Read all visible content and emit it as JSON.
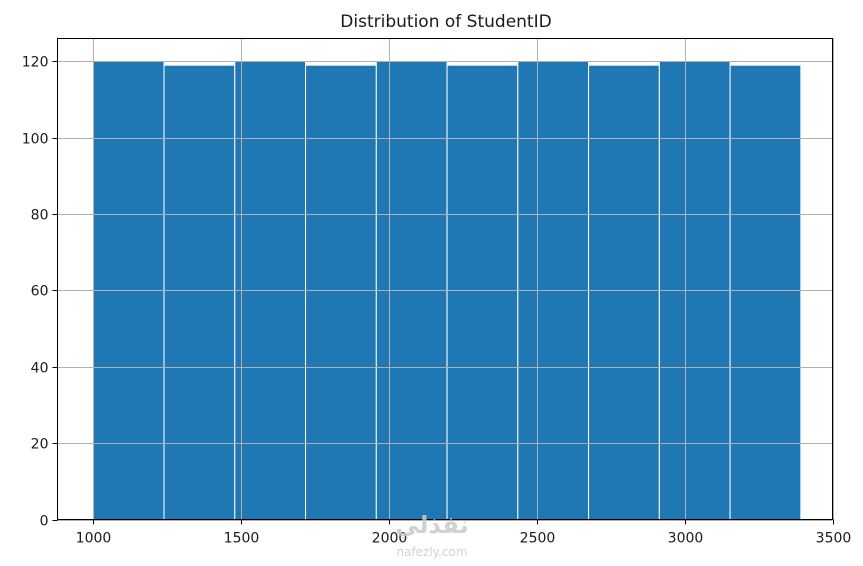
{
  "chart_data": {
    "type": "bar",
    "title": "Distribution of StudentID",
    "xlabel": "",
    "ylabel": "",
    "bin_edges": [
      1001,
      1240.2,
      1479.4,
      1718.6,
      1957.8,
      2197,
      2436.2,
      2675.4,
      2914.6,
      3153.8,
      3393
    ],
    "values": [
      120,
      119,
      120,
      119,
      120,
      119,
      120,
      119,
      120,
      119
    ],
    "xlim": [
      880,
      3500
    ],
    "ylim": [
      0,
      126
    ],
    "x_ticks": [
      1000,
      1500,
      2000,
      2500,
      3000,
      3500
    ],
    "x_tick_labels": [
      "1000",
      "1500",
      "2000",
      "2500",
      "3000",
      "3500"
    ],
    "y_ticks": [
      0,
      20,
      40,
      60,
      80,
      100,
      120
    ],
    "y_tick_labels": [
      "0",
      "20",
      "40",
      "60",
      "80",
      "100",
      "120"
    ],
    "grid": true,
    "bar_color": "#1f77b4",
    "edge_color": "#ffffff"
  },
  "watermark": {
    "arabic": "نفذلي",
    "latin": "nafezly.com"
  }
}
